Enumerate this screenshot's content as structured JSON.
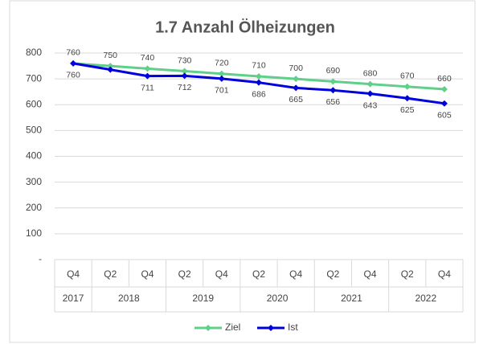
{
  "chart_data": {
    "type": "line",
    "title": "1.7 Anzahl Ölheizungen",
    "categories": [
      "Q4",
      "Q2",
      "Q4",
      "Q2",
      "Q4",
      "Q2",
      "Q4",
      "Q2",
      "Q4",
      "Q2",
      "Q4"
    ],
    "category_groups": [
      {
        "label": "2017",
        "count": 1
      },
      {
        "label": "2018",
        "count": 2
      },
      {
        "label": "2019",
        "count": 2
      },
      {
        "label": "2020",
        "count": 2
      },
      {
        "label": "2021",
        "count": 2
      },
      {
        "label": "2022",
        "count": 2
      }
    ],
    "series": [
      {
        "name": "Ziel",
        "color": "#5fcf8a",
        "values": [
          760,
          750,
          740,
          730,
          720,
          710,
          700,
          690,
          680,
          670,
          660
        ],
        "label_side": "above"
      },
      {
        "name": "Ist",
        "color": "#0000dd",
        "values": [
          760,
          736,
          711,
          712,
          701,
          686,
          665,
          656,
          643,
          625,
          605
        ],
        "value_labels": [
          "760",
          null,
          "711",
          "712",
          "701",
          "686",
          "665",
          "656",
          "643",
          "625",
          "605"
        ],
        "label_side": "below"
      }
    ],
    "ylim": [
      0,
      850
    ],
    "yticks": [
      {
        "value": 0,
        "label": "-"
      },
      100,
      200,
      300,
      400,
      500,
      600,
      700,
      800
    ],
    "grid": true,
    "legend": "bottom"
  }
}
